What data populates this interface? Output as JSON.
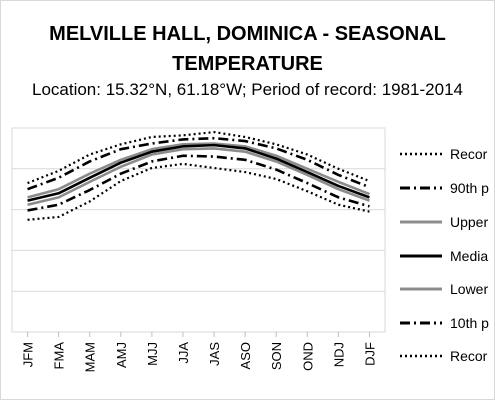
{
  "chart_data": {
    "type": "line",
    "title": "MELVILLE HALL, DOMINICA - SEASONAL TEMPERATURE",
    "title_lines": [
      "MELVILLE HALL, DOMINICA - SEASONAL",
      "TEMPERATURE"
    ],
    "subtitle": "Location: 15.32°N, 61.18°W; Period of record: 1981-2014",
    "categories": [
      "JFM",
      "FMA",
      "MAM",
      "AMJ",
      "MJJ",
      "JJA",
      "JAS",
      "ASO",
      "SON",
      "OND",
      "NDJ",
      "DJF"
    ],
    "ylim": [
      0,
      5
    ],
    "grid": true,
    "legend_position": "right",
    "series": [
      {
        "name": "Recor",
        "style": "dotted",
        "color": "#000000",
        "values": [
          3.65,
          3.95,
          4.35,
          4.6,
          4.78,
          4.82,
          4.9,
          4.78,
          4.6,
          4.35,
          4.0,
          3.7
        ]
      },
      {
        "name": "90th p",
        "style": "dashdot",
        "color": "#000000",
        "values": [
          3.5,
          3.78,
          4.18,
          4.48,
          4.62,
          4.72,
          4.75,
          4.68,
          4.5,
          4.22,
          3.85,
          3.55
        ]
      },
      {
        "name": "Upper",
        "style": "solid",
        "color": "#8c8c8c",
        "values": [
          3.3,
          3.5,
          3.88,
          4.22,
          4.48,
          4.6,
          4.62,
          4.55,
          4.32,
          4.0,
          3.68,
          3.38
        ]
      },
      {
        "name": "Media",
        "style": "solid",
        "color": "#000000",
        "values": [
          3.22,
          3.4,
          3.78,
          4.15,
          4.42,
          4.55,
          4.58,
          4.5,
          4.25,
          3.92,
          3.58,
          3.3
        ]
      },
      {
        "name": "Lower",
        "style": "solid",
        "color": "#8c8c8c",
        "values": [
          3.12,
          3.3,
          3.68,
          4.05,
          4.35,
          4.48,
          4.5,
          4.42,
          4.18,
          3.85,
          3.5,
          3.22
        ]
      },
      {
        "name": "10th p",
        "style": "dashdot",
        "color": "#000000",
        "values": [
          2.98,
          3.12,
          3.48,
          3.88,
          4.18,
          4.32,
          4.3,
          4.22,
          3.98,
          3.65,
          3.3,
          3.08
        ]
      },
      {
        "name": "Recor",
        "style": "dotted",
        "color": "#000000",
        "values": [
          2.75,
          2.82,
          3.2,
          3.7,
          4.02,
          4.12,
          4.02,
          3.92,
          3.75,
          3.45,
          3.12,
          2.95
        ]
      }
    ]
  }
}
